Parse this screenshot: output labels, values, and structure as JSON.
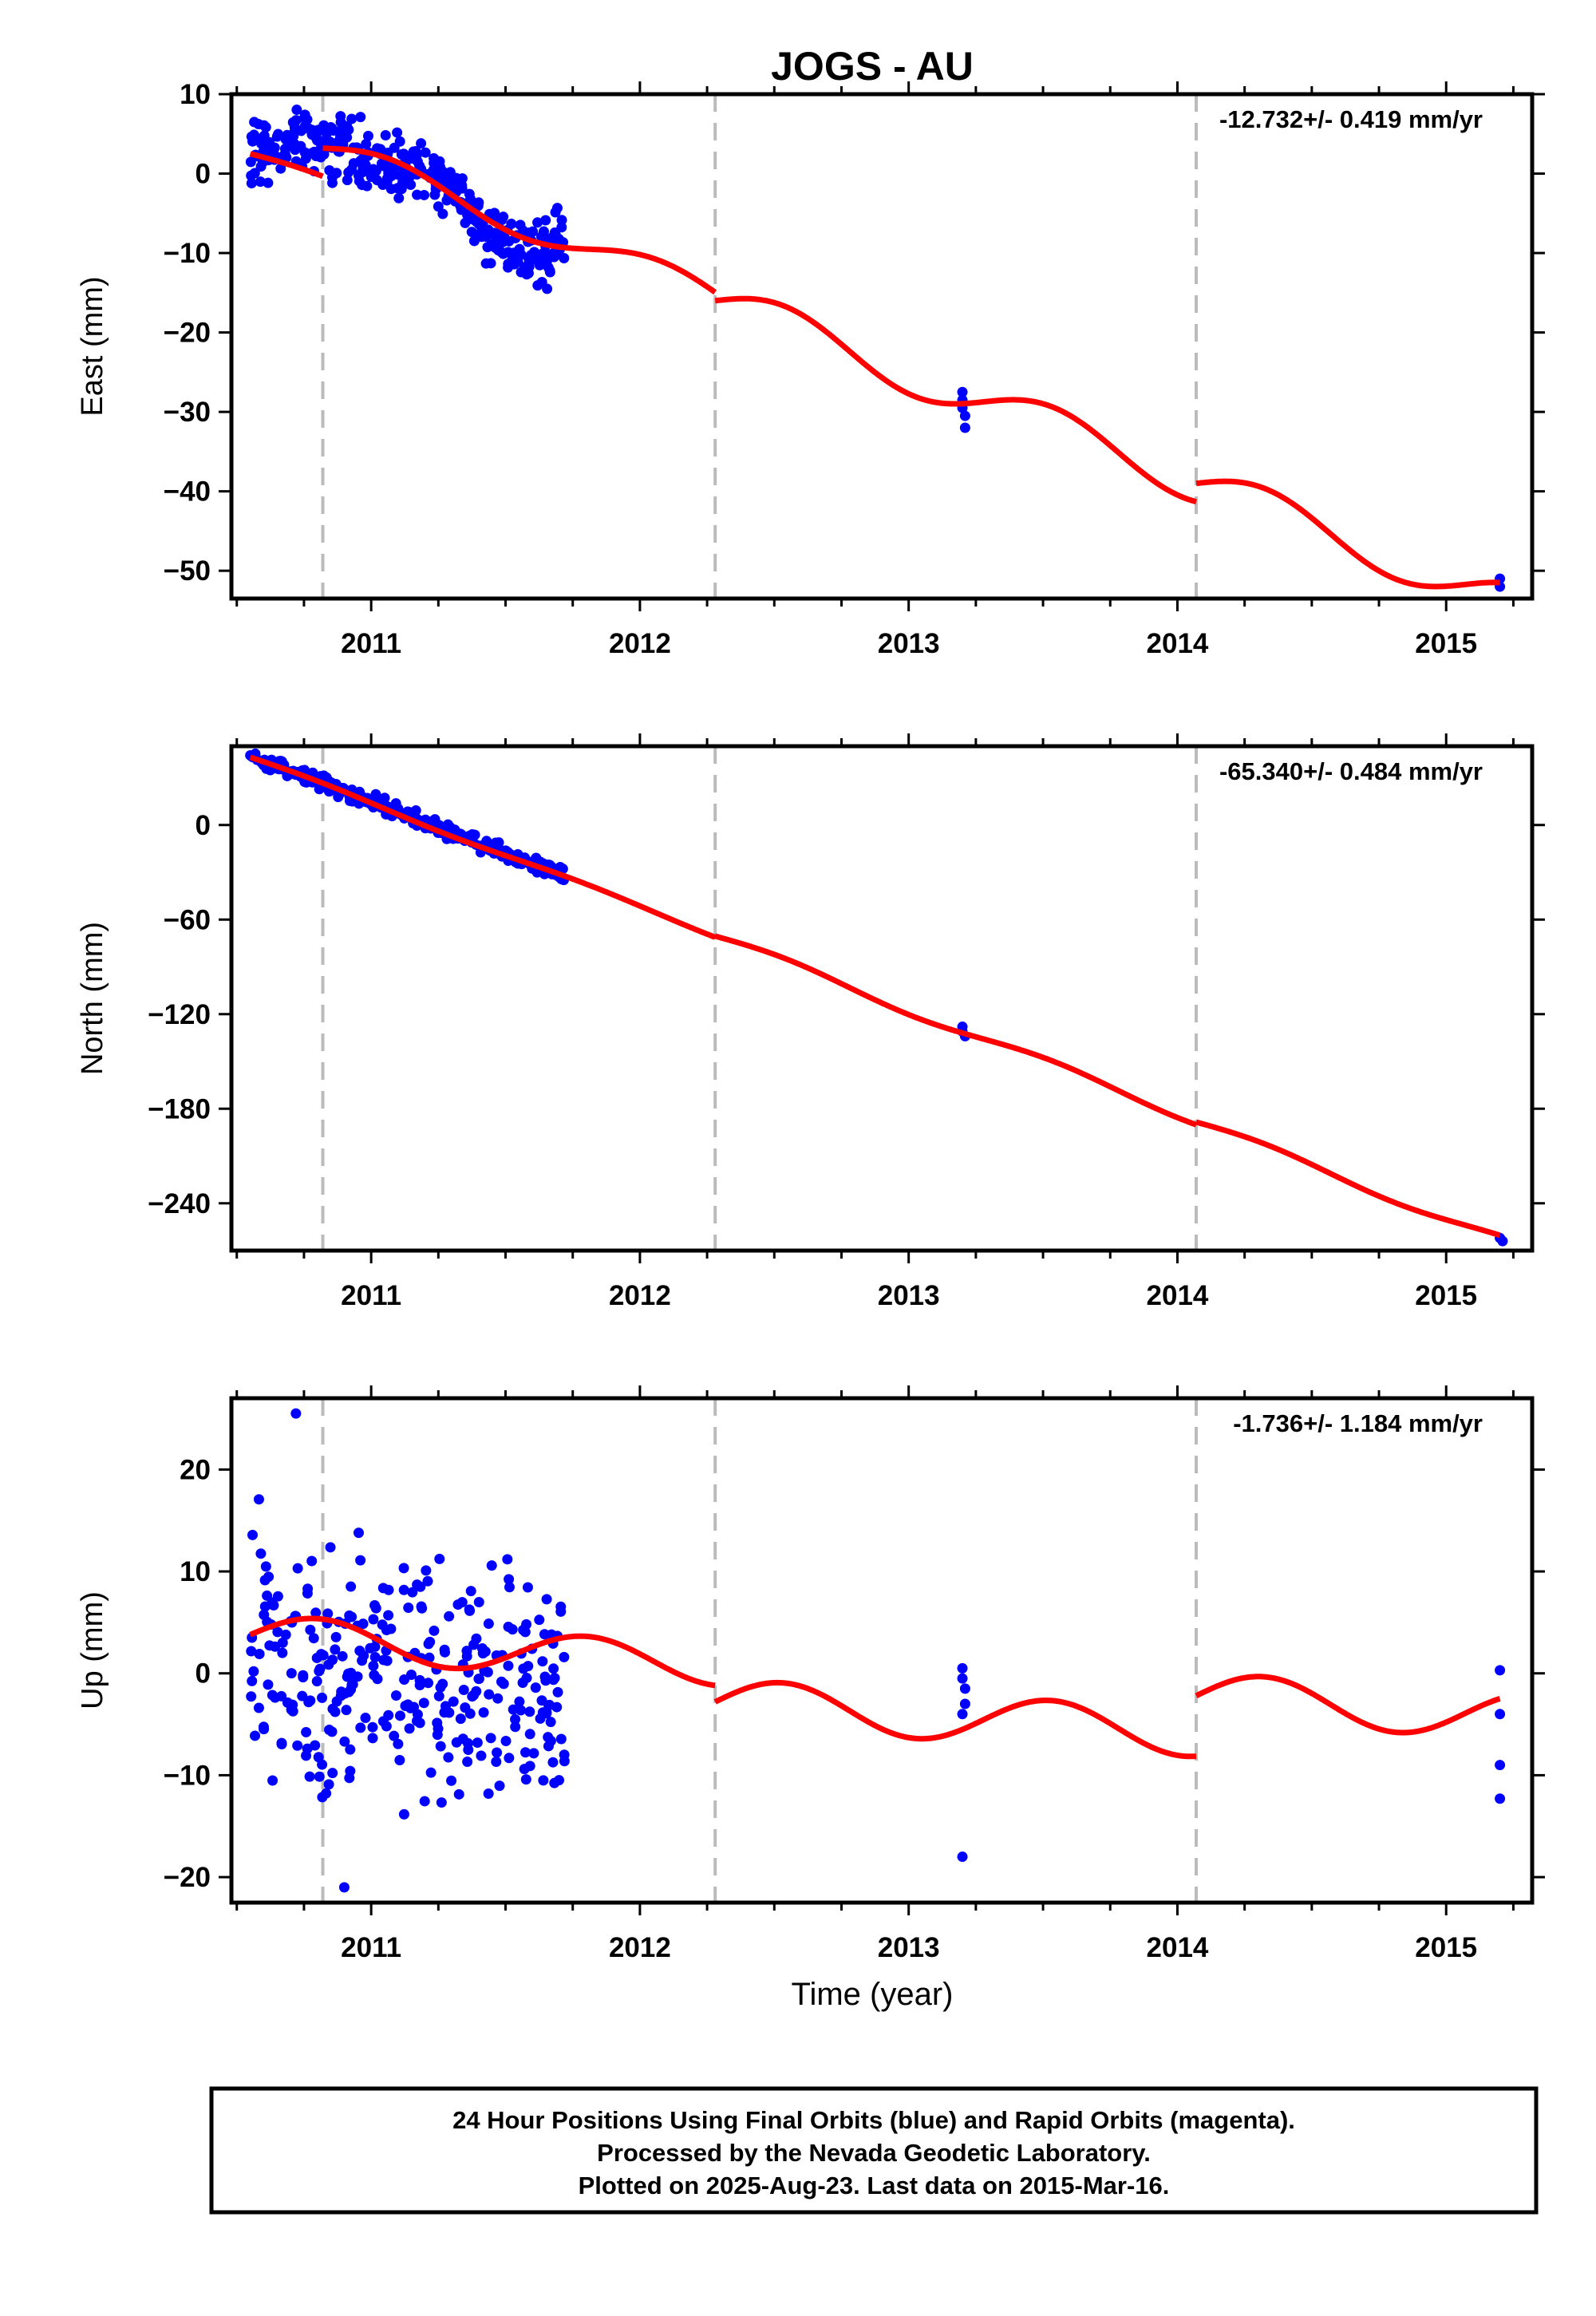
{
  "chart_data": {
    "type": "scatter",
    "title": "JOGS - AU",
    "xlabel": "Time (year)",
    "xlim": [
      2010.48,
      2015.32
    ],
    "x_ticks": [
      2011,
      2012,
      2013,
      2014,
      2015
    ],
    "x_tick_labels": [
      "2011",
      "2012",
      "2013",
      "2014",
      "2015"
    ],
    "vlines": [
      2010.82,
      2012.28,
      2014.07
    ],
    "series_colors": {
      "observed": "#0000ff",
      "model": "#ff0000",
      "vlines": "#bbbbbb"
    },
    "panels": [
      {
        "name": "east",
        "ylabel": "East (mm)",
        "ylim": [
          -53.5,
          10
        ],
        "y_ticks": [
          10,
          0,
          -10,
          -20,
          -30,
          -40,
          -50
        ],
        "y_tick_labels": [
          "10",
          "0",
          "−10",
          "−20",
          "−30",
          "−40",
          "−50"
        ],
        "rate_label": "-12.732+/- 0.419 mm/yr",
        "observed": {
          "segments": [
            {
              "x": [
                2010.55,
                2010.65,
                2010.75,
                2010.85,
                2010.95,
                2011.05,
                2011.15,
                2011.25,
                2011.35,
                2011.45,
                2011.55,
                2011.65,
                2011.72
              ],
              "y": [
                3,
                3.5,
                4,
                3.5,
                2,
                0.5,
                0.5,
                0,
                -4,
                -7,
                -9.5,
                -9.5,
                -8.5
              ],
              "spread": 2.2,
              "count": 380
            }
          ],
          "points": [
            [
              2013.2,
              -27.5
            ],
            [
              2013.2,
              -28.5
            ],
            [
              2013.2,
              -29.5
            ],
            [
              2013.21,
              -30.5
            ],
            [
              2013.21,
              -32
            ],
            [
              2015.2,
              -51
            ],
            [
              2015.2,
              -52
            ]
          ]
        },
        "model": {
          "trend": -12.732,
          "knots": [
            {
              "from": 2010.55,
              "to": 2010.82,
              "y0": 2.5,
              "amp": 0.6
            },
            {
              "from": 2010.82,
              "to": 2012.28,
              "y0": 3.2,
              "amp": 1.8
            },
            {
              "from": 2012.28,
              "to": 2014.07,
              "y0": -16.0,
              "amp": 2.6
            },
            {
              "from": 2014.07,
              "to": 2015.2,
              "y0": -39.0,
              "amp": 2.6
            }
          ]
        }
      },
      {
        "name": "north",
        "ylabel": "North (mm)",
        "ylim": [
          -270,
          50
        ],
        "y_ticks": [
          0,
          -60,
          -120,
          -180,
          -240
        ],
        "y_tick_labels": [
          "0",
          "−60",
          "−120",
          "−180",
          "−240"
        ],
        "rate_label": "-65.340+/- 0.484 mm/yr",
        "observed": {
          "segments": [
            {
              "x": [
                2010.55,
                2010.82,
                2011.0,
                2011.25,
                2011.5,
                2011.72
              ],
              "y": [
                43,
                26,
                15,
                -2,
                -18,
                -32
              ],
              "spread": 2.5,
              "count": 330
            }
          ],
          "points": [
            [
              2013.2,
              -128
            ],
            [
              2013.2,
              -131
            ],
            [
              2013.21,
              -134
            ],
            [
              2015.2,
              -262
            ],
            [
              2015.21,
              -264
            ]
          ]
        },
        "model": {
          "trend": -65.34,
          "knots": [
            {
              "from": 2010.55,
              "to": 2012.28,
              "y0": 43.0,
              "amp": 1.2
            },
            {
              "from": 2012.28,
              "to": 2014.07,
              "y0": -70.5,
              "amp": 2.8
            },
            {
              "from": 2014.07,
              "to": 2015.2,
              "y0": -188.5,
              "amp": 2.8
            }
          ]
        }
      },
      {
        "name": "up",
        "ylabel": "Up (mm)",
        "ylim": [
          -22.5,
          27
        ],
        "y_ticks": [
          20,
          10,
          0,
          -10,
          -20
        ],
        "y_tick_labels": [
          "20",
          "10",
          "0",
          "−10",
          "−20"
        ],
        "rate_label": "-1.736+/- 1.184 mm/yr",
        "observed": {
          "segments": [
            {
              "x": [
                2010.55,
                2010.82,
                2011.0,
                2011.25,
                2011.5,
                2011.72
              ],
              "y": [
                3,
                -1,
                1,
                -1,
                1,
                -3
              ],
              "spread": 6.5,
              "count": 320
            }
          ],
          "points": [
            [
              2010.72,
              25.5
            ],
            [
              2010.9,
              -21
            ],
            [
              2013.2,
              0.5
            ],
            [
              2013.2,
              -0.5
            ],
            [
              2013.21,
              -1.5
            ],
            [
              2013.21,
              -3
            ],
            [
              2013.2,
              -4
            ],
            [
              2013.2,
              -18
            ],
            [
              2015.2,
              0.3
            ],
            [
              2015.2,
              -4
            ],
            [
              2015.2,
              -9
            ],
            [
              2015.2,
              -12.3
            ]
          ]
        },
        "model": {
          "trend": -1.736,
          "knots": [
            {
              "from": 2010.55,
              "to": 2012.28,
              "y0": 3.8,
              "amp": 2.0
            },
            {
              "from": 2012.28,
              "to": 2014.07,
              "y0": -2.8,
              "amp": 2.3
            },
            {
              "from": 2014.07,
              "to": 2015.2,
              "y0": -2.2,
              "amp": 2.3
            }
          ]
        }
      }
    ]
  },
  "footer": {
    "line1": "24 Hour Positions Using Final Orbits (blue) and Rapid Orbits (magenta).",
    "line2": "Processed by the Nevada Geodetic Laboratory.",
    "line3": "Plotted on 2025-Aug-23. Last data on 2015-Mar-16."
  }
}
